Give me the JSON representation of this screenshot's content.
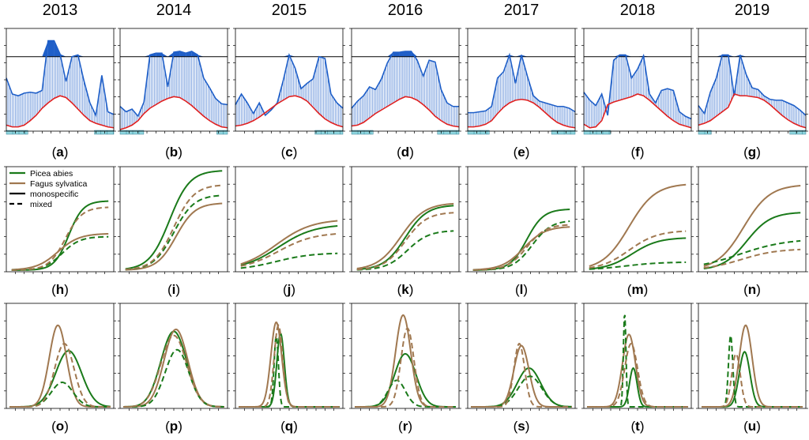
{
  "years": [
    "2013",
    "2014",
    "2015",
    "2016",
    "2017",
    "2018",
    "2019"
  ],
  "panel_labels": [
    [
      "a",
      "b",
      "c",
      "d",
      "e",
      "f",
      "g"
    ],
    [
      "h",
      "i",
      "j",
      "k",
      "l",
      "m",
      "n"
    ],
    [
      "o",
      "p",
      "q",
      "r",
      "s",
      "t",
      "u"
    ]
  ],
  "legend": {
    "species": [
      {
        "name": "Picea abies",
        "color": "#1a7a1a"
      },
      {
        "name": "Fagus sylvatica",
        "color": "#a07850"
      }
    ],
    "styles": [
      {
        "name": "monospecific",
        "dash": "solid"
      },
      {
        "name": "mixed",
        "dash": "dashed"
      }
    ]
  },
  "colors": {
    "water_line": "#1f5fc8",
    "fill": "#1f5fc8",
    "red_line": "#e02020",
    "green": "#1a7a1a",
    "brown": "#a07850",
    "bar": "#8fd7e0",
    "frame": "#000000"
  },
  "chart_data": [
    {
      "type": "area",
      "row": "top",
      "description_units": "normalized 0-1 (unlabeled y axis)",
      "ylim": [
        0,
        1.12
      ],
      "hline": 0.82,
      "series": [
        {
          "year": "2013",
          "blue": [
            0.58,
            0.4,
            0.38,
            0.41,
            0.42,
            0.41,
            0.44,
            1.0,
            1.0,
            0.85,
            0.54,
            0.82,
            0.84,
            0.55,
            0.3,
            0.16,
            0.61,
            0.2,
            0.17
          ],
          "red": [
            0.05,
            0.03,
            0.03,
            0.05,
            0.1,
            0.16,
            0.24,
            0.3,
            0.35,
            0.38,
            0.36,
            0.3,
            0.23,
            0.16,
            0.1,
            0.07,
            0.05,
            0.03,
            0.02
          ],
          "bars": [
            0.0,
            0.2,
            0.82,
            1.0
          ]
        },
        {
          "year": "2014",
          "blue": [
            0.26,
            0.2,
            0.23,
            0.15,
            0.31,
            0.84,
            0.86,
            0.86,
            0.48,
            0.87,
            0.88,
            0.86,
            0.88,
            0.84,
            0.58,
            0.47,
            0.35,
            0.29,
            0.28
          ],
          "red": [
            0.0,
            0.02,
            0.05,
            0.1,
            0.18,
            0.24,
            0.28,
            0.32,
            0.35,
            0.37,
            0.36,
            0.32,
            0.27,
            0.21,
            0.15,
            0.1,
            0.06,
            0.03,
            0.02
          ],
          "bars": [
            0.0,
            0.22,
            0.9,
            1.0
          ]
        },
        {
          "year": "2015",
          "blue": [
            0.28,
            0.4,
            0.3,
            0.18,
            0.3,
            0.16,
            0.22,
            0.3,
            0.55,
            0.84,
            0.69,
            0.46,
            0.52,
            0.57,
            0.82,
            0.8,
            0.4,
            0.3,
            0.24
          ],
          "red": [
            0.04,
            0.05,
            0.07,
            0.1,
            0.14,
            0.19,
            0.24,
            0.29,
            0.33,
            0.37,
            0.38,
            0.36,
            0.32,
            0.25,
            0.18,
            0.12,
            0.08,
            0.05,
            0.03
          ],
          "bars": [
            0.74,
            1.0
          ]
        },
        {
          "year": "2016",
          "blue": [
            0.24,
            0.32,
            0.38,
            0.48,
            0.45,
            0.57,
            0.75,
            0.87,
            0.87,
            0.88,
            0.88,
            0.78,
            0.6,
            0.78,
            0.76,
            0.45,
            0.3,
            0.26,
            0.26
          ],
          "red": [
            0.04,
            0.05,
            0.08,
            0.13,
            0.18,
            0.22,
            0.26,
            0.3,
            0.34,
            0.37,
            0.36,
            0.33,
            0.28,
            0.22,
            0.15,
            0.1,
            0.06,
            0.04,
            0.03
          ],
          "bars": [
            0.0,
            0.2,
            0.8,
            1.0
          ]
        },
        {
          "year": "2017",
          "blue": [
            0.19,
            0.19,
            0.2,
            0.21,
            0.26,
            0.58,
            0.65,
            0.84,
            0.52,
            0.84,
            0.6,
            0.38,
            0.32,
            0.3,
            0.28,
            0.26,
            0.26,
            0.24,
            0.2
          ],
          "red": [
            0.03,
            0.03,
            0.04,
            0.06,
            0.1,
            0.18,
            0.25,
            0.3,
            0.33,
            0.34,
            0.33,
            0.3,
            0.25,
            0.19,
            0.13,
            0.08,
            0.05,
            0.03,
            0.02
          ],
          "bars": [
            0.0,
            0.2,
            0.78,
            1.0
          ]
        },
        {
          "year": "2018",
          "blue": [
            0.42,
            0.33,
            0.27,
            0.4,
            0.16,
            0.78,
            0.84,
            0.84,
            0.58,
            0.68,
            0.83,
            0.4,
            0.3,
            0.44,
            0.46,
            0.44,
            0.2,
            0.15,
            0.12
          ],
          "red": [
            0.06,
            0.02,
            0.03,
            0.1,
            0.28,
            0.31,
            0.33,
            0.35,
            0.37,
            0.4,
            0.38,
            0.33,
            0.27,
            0.21,
            0.15,
            0.1,
            0.06,
            0.04,
            0.02
          ],
          "bars": [
            0.0,
            0.25
          ]
        },
        {
          "year": "2019",
          "blue": [
            0.27,
            0.18,
            0.42,
            0.58,
            0.84,
            0.84,
            0.38,
            0.84,
            0.62,
            0.47,
            0.45,
            0.38,
            0.34,
            0.33,
            0.33,
            0.3,
            0.27,
            0.22,
            0.16
          ],
          "red": [
            0.05,
            0.07,
            0.1,
            0.15,
            0.2,
            0.25,
            0.4,
            0.38,
            0.38,
            0.37,
            0.36,
            0.33,
            0.28,
            0.22,
            0.16,
            0.11,
            0.07,
            0.04,
            0.02
          ],
          "bars": [
            0.0,
            0.12,
            0.85,
            1.0
          ]
        }
      ]
    },
    {
      "type": "line",
      "row": "middle",
      "description_units": "normalized cumulative growth 0-1 (unlabeled axes)",
      "ylim": [
        0,
        1
      ],
      "series": [
        {
          "year": "2013",
          "curves": [
            {
              "species": "Picea abies",
              "style": "monospecific",
              "max": 0.68,
              "mid": 0.58,
              "k": 0.06
            },
            {
              "species": "Fagus sylvatica",
              "style": "monospecific",
              "max": 0.36,
              "mid": 0.48,
              "k": 0.09
            },
            {
              "species": "Picea abies",
              "style": "mixed",
              "max": 0.33,
              "mid": 0.52,
              "k": 0.075
            },
            {
              "species": "Fagus sylvatica",
              "style": "mixed",
              "max": 0.62,
              "mid": 0.55,
              "k": 0.07
            }
          ]
        },
        {
          "year": "2014",
          "curves": [
            {
              "species": "Picea abies",
              "style": "monospecific",
              "max": 0.98,
              "mid": 0.46,
              "k": 0.085
            },
            {
              "species": "Fagus sylvatica",
              "style": "monospecific",
              "max": 0.66,
              "mid": 0.52,
              "k": 0.08
            },
            {
              "species": "Picea abies",
              "style": "mixed",
              "max": 0.74,
              "mid": 0.5,
              "k": 0.085
            },
            {
              "species": "Fagus sylvatica",
              "style": "mixed",
              "max": 0.84,
              "mid": 0.5,
              "k": 0.085
            }
          ]
        },
        {
          "year": "2015",
          "curves": [
            {
              "species": "Picea abies",
              "style": "monospecific",
              "max": 0.45,
              "mid": 0.4,
              "k": 0.15
            },
            {
              "species": "Fagus sylvatica",
              "style": "monospecific",
              "max": 0.5,
              "mid": 0.38,
              "k": 0.15
            },
            {
              "species": "Picea abies",
              "style": "mixed",
              "max": 0.17,
              "mid": 0.38,
              "k": 0.15
            },
            {
              "species": "Fagus sylvatica",
              "style": "mixed",
              "max": 0.37,
              "mid": 0.4,
              "k": 0.15
            }
          ]
        },
        {
          "year": "2016",
          "curves": [
            {
              "species": "Picea abies",
              "style": "monospecific",
              "max": 0.64,
              "mid": 0.5,
              "k": 0.09
            },
            {
              "species": "Fagus sylvatica",
              "style": "monospecific",
              "max": 0.66,
              "mid": 0.46,
              "k": 0.1
            },
            {
              "species": "Picea abies",
              "style": "mixed",
              "max": 0.39,
              "mid": 0.52,
              "k": 0.09
            },
            {
              "species": "Fagus sylvatica",
              "style": "mixed",
              "max": 0.57,
              "mid": 0.5,
              "k": 0.09
            }
          ]
        },
        {
          "year": "2017",
          "curves": [
            {
              "species": "Picea abies",
              "style": "monospecific",
              "max": 0.6,
              "mid": 0.55,
              "k": 0.07
            },
            {
              "species": "Fagus sylvatica",
              "style": "monospecific",
              "max": 0.43,
              "mid": 0.52,
              "k": 0.09
            },
            {
              "species": "Picea abies",
              "style": "mixed",
              "max": 0.49,
              "mid": 0.6,
              "k": 0.08
            },
            {
              "species": "Fagus sylvatica",
              "style": "mixed",
              "max": 0.45,
              "mid": 0.55,
              "k": 0.08
            }
          ]
        },
        {
          "year": "2018",
          "curves": [
            {
              "species": "Picea abies",
              "style": "monospecific",
              "max": 0.32,
              "mid": 0.45,
              "k": 0.11
            },
            {
              "species": "Fagus sylvatica",
              "style": "monospecific",
              "max": 0.85,
              "mid": 0.42,
              "k": 0.11
            },
            {
              "species": "Picea abies",
              "style": "mixed",
              "max": 0.08,
              "mid": 0.38,
              "k": 0.15
            },
            {
              "species": "Fagus sylvatica",
              "style": "mixed",
              "max": 0.39,
              "mid": 0.42,
              "k": 0.12
            }
          ]
        },
        {
          "year": "2019",
          "curves": [
            {
              "species": "Picea abies",
              "style": "monospecific",
              "max": 0.57,
              "mid": 0.45,
              "k": 0.1
            },
            {
              "species": "Fagus sylvatica",
              "style": "monospecific",
              "max": 0.84,
              "mid": 0.42,
              "k": 0.11
            },
            {
              "species": "Picea abies",
              "style": "mixed",
              "max": 0.31,
              "mid": 0.38,
              "k": 0.2
            },
            {
              "species": "Fagus sylvatica",
              "style": "mixed",
              "max": 0.21,
              "mid": 0.4,
              "k": 0.15
            }
          ]
        }
      ]
    },
    {
      "type": "line",
      "row": "bottom",
      "description_units": "normalized growth rate 0-1 (unlabeled axes)",
      "ylim": [
        0,
        1
      ],
      "series": [
        {
          "year": "2013",
          "curves": [
            {
              "species": "Picea abies",
              "style": "monospecific",
              "amp": 0.55,
              "mu": 0.58,
              "sd": 0.12
            },
            {
              "species": "Fagus sylvatica",
              "style": "monospecific",
              "amp": 0.8,
              "mu": 0.48,
              "sd": 0.08
            },
            {
              "species": "Picea abies",
              "style": "mixed",
              "amp": 0.24,
              "mu": 0.52,
              "sd": 0.1
            },
            {
              "species": "Fagus sylvatica",
              "style": "mixed",
              "amp": 0.62,
              "mu": 0.54,
              "sd": 0.09
            }
          ]
        },
        {
          "year": "2014",
          "curves": [
            {
              "species": "Picea abies",
              "style": "monospecific",
              "amp": 0.74,
              "mu": 0.5,
              "sd": 0.12
            },
            {
              "species": "Fagus sylvatica",
              "style": "monospecific",
              "amp": 0.76,
              "mu": 0.52,
              "sd": 0.11
            },
            {
              "species": "Picea abies",
              "style": "mixed",
              "amp": 0.56,
              "mu": 0.53,
              "sd": 0.11
            },
            {
              "species": "Fagus sylvatica",
              "style": "mixed",
              "amp": 0.7,
              "mu": 0.5,
              "sd": 0.12
            }
          ]
        },
        {
          "year": "2015",
          "curves": [
            {
              "species": "Picea abies",
              "style": "monospecific",
              "amp": 0.72,
              "mu": 0.42,
              "sd": 0.035
            },
            {
              "species": "Fagus sylvatica",
              "style": "monospecific",
              "amp": 0.83,
              "mu": 0.38,
              "sd": 0.05
            },
            {
              "species": "Picea abies",
              "style": "mixed",
              "amp": 0.7,
              "mu": 0.38,
              "sd": 0.02
            },
            {
              "species": "Fagus sylvatica",
              "style": "mixed",
              "amp": 0.8,
              "mu": 0.4,
              "sd": 0.04
            }
          ]
        },
        {
          "year": "2016",
          "curves": [
            {
              "species": "Picea abies",
              "style": "monospecific",
              "amp": 0.52,
              "mu": 0.5,
              "sd": 0.1
            },
            {
              "species": "Fagus sylvatica",
              "style": "monospecific",
              "amp": 0.9,
              "mu": 0.48,
              "sd": 0.07
            },
            {
              "species": "Picea abies",
              "style": "mixed",
              "amp": 0.26,
              "mu": 0.42,
              "sd": 0.08
            },
            {
              "species": "Fagus sylvatica",
              "style": "mixed",
              "amp": 0.77,
              "mu": 0.52,
              "sd": 0.06
            }
          ]
        },
        {
          "year": "2017",
          "curves": [
            {
              "species": "Picea abies",
              "style": "monospecific",
              "amp": 0.38,
              "mu": 0.57,
              "sd": 0.11
            },
            {
              "species": "Fagus sylvatica",
              "style": "monospecific",
              "amp": 0.6,
              "mu": 0.5,
              "sd": 0.07
            },
            {
              "species": "Picea abies",
              "style": "mixed",
              "amp": 0.3,
              "mu": 0.58,
              "sd": 0.11
            },
            {
              "species": "Fagus sylvatica",
              "style": "mixed",
              "amp": 0.62,
              "mu": 0.48,
              "sd": 0.05
            }
          ]
        },
        {
          "year": "2018",
          "curves": [
            {
              "species": "Picea abies",
              "style": "monospecific",
              "amp": 0.38,
              "mu": 0.46,
              "sd": 0.035
            },
            {
              "species": "Fagus sylvatica",
              "style": "monospecific",
              "amp": 0.71,
              "mu": 0.42,
              "sd": 0.06
            },
            {
              "species": "Picea abies",
              "style": "mixed",
              "amp": 0.92,
              "mu": 0.38,
              "sd": 0.012
            },
            {
              "species": "Fagus sylvatica",
              "style": "mixed",
              "amp": 0.62,
              "mu": 0.44,
              "sd": 0.06
            }
          ]
        },
        {
          "year": "2019",
          "curves": [
            {
              "species": "Picea abies",
              "style": "monospecific",
              "amp": 0.54,
              "mu": 0.43,
              "sd": 0.05
            },
            {
              "species": "Fagus sylvatica",
              "style": "monospecific",
              "amp": 0.8,
              "mu": 0.44,
              "sd": 0.06
            },
            {
              "species": "Picea abies",
              "style": "mixed",
              "amp": 0.7,
              "mu": 0.3,
              "sd": 0.02
            },
            {
              "species": "Fagus sylvatica",
              "style": "mixed",
              "amp": 0.52,
              "mu": 0.35,
              "sd": 0.04
            }
          ]
        }
      ]
    }
  ]
}
